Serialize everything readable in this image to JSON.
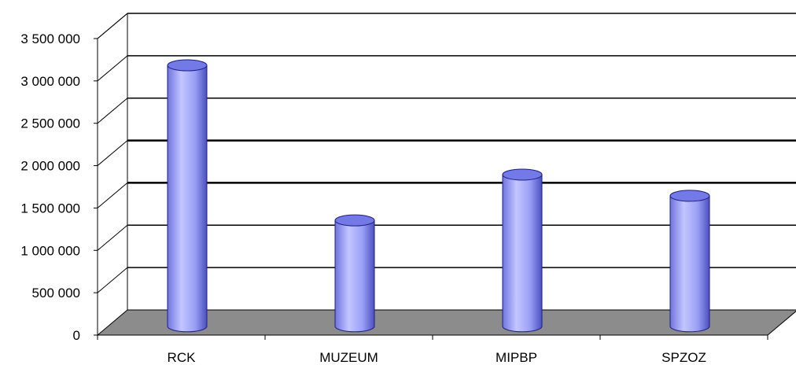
{
  "chart_data": {
    "type": "bar",
    "style": "3d-cylinder",
    "categories": [
      "RCK",
      "MUZEUM",
      "MIPBP",
      "SPZOZ"
    ],
    "values": [
      3080000,
      1250000,
      1790000,
      1540000
    ],
    "ylim": [
      0,
      3500000
    ],
    "yticks": [
      0,
      500000,
      1000000,
      1500000,
      2000000,
      2500000,
      3000000,
      3500000
    ],
    "ytick_labels": [
      "0",
      "500 000",
      "1 000 000",
      "1 500 000",
      "2 000 000",
      "2 500 000",
      "3 000 000",
      "3 500 000"
    ],
    "grid": true,
    "legend": "none",
    "colors": {
      "bar_light": "#c3c6ff",
      "bar_mid": "#8f94f2",
      "bar_dark": "#4a4fc0",
      "bar_top": "#7479e8",
      "floor": "#8c8c8c",
      "axis": "#000000"
    }
  }
}
